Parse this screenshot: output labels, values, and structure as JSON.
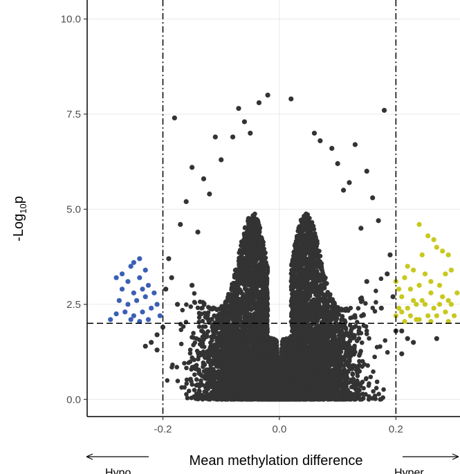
{
  "chart_data": {
    "type": "scatter",
    "title": "",
    "xlabel": "Mean methylation difference",
    "ylabel_main": "-Log",
    "ylabel_sub": "10",
    "ylabel_tail": "p",
    "xlim": [
      -0.33,
      0.31
    ],
    "ylim": [
      -0.45,
      10.5
    ],
    "x_ticks": [
      -0.2,
      0.0,
      0.2
    ],
    "x_tick_labels": [
      "-0.2",
      "0.0",
      "0.2"
    ],
    "y_ticks": [
      0.0,
      2.5,
      5.0,
      7.5,
      10.0
    ],
    "y_tick_labels": [
      "0.0",
      "2.5",
      "5.0",
      "7.5",
      "10.0"
    ],
    "grid": true,
    "vertical_thresholds": [
      -0.2,
      0.2
    ],
    "horizontal_threshold": 2.0,
    "annotations": {
      "left": "Hypo",
      "right": "Hyper"
    },
    "colors": {
      "nonsig": "#333333",
      "hypo": "#3b5fb4",
      "hyper": "#c8c81e"
    },
    "series": [
      {
        "name": "",
        "color": "#c8c81e",
        "points": [
          [
            0.24,
            4.6
          ],
          [
            0.255,
            4.3
          ],
          [
            0.27,
            4.0
          ],
          [
            0.265,
            4.2
          ],
          [
            0.28,
            3.9
          ],
          [
            0.29,
            3.8
          ],
          [
            0.245,
            3.8
          ],
          [
            0.22,
            3.5
          ],
          [
            0.23,
            3.4
          ],
          [
            0.25,
            3.3
          ],
          [
            0.285,
            3.3
          ],
          [
            0.295,
            3.4
          ],
          [
            0.215,
            3.2
          ],
          [
            0.24,
            3.0
          ],
          [
            0.26,
            3.1
          ],
          [
            0.275,
            3.0
          ],
          [
            0.225,
            2.9
          ],
          [
            0.2,
            3.1
          ],
          [
            0.205,
            2.9
          ],
          [
            0.21,
            2.7
          ],
          [
            0.23,
            2.6
          ],
          [
            0.245,
            2.6
          ],
          [
            0.26,
            2.8
          ],
          [
            0.28,
            2.7
          ],
          [
            0.29,
            2.6
          ],
          [
            0.205,
            2.4
          ],
          [
            0.22,
            2.4
          ],
          [
            0.235,
            2.5
          ],
          [
            0.25,
            2.5
          ],
          [
            0.265,
            2.4
          ],
          [
            0.275,
            2.5
          ],
          [
            0.295,
            2.5
          ],
          [
            0.2,
            2.2
          ],
          [
            0.21,
            2.3
          ],
          [
            0.225,
            2.2
          ],
          [
            0.24,
            2.1
          ],
          [
            0.255,
            2.2
          ],
          [
            0.27,
            2.2
          ],
          [
            0.285,
            2.3
          ],
          [
            0.3,
            2.2
          ],
          [
            0.215,
            2.05
          ],
          [
            0.235,
            2.1
          ],
          [
            0.26,
            2.05
          ],
          [
            0.29,
            2.05
          ],
          [
            0.305,
            2.8
          ]
        ]
      },
      {
        "name": "",
        "color": "#3b5fb4",
        "points": [
          [
            -0.24,
            3.7
          ],
          [
            -0.25,
            3.6
          ],
          [
            -0.255,
            3.5
          ],
          [
            -0.27,
            3.3
          ],
          [
            -0.28,
            3.2
          ],
          [
            -0.23,
            3.4
          ],
          [
            -0.24,
            3.2
          ],
          [
            -0.26,
            3.1
          ],
          [
            -0.225,
            3.0
          ],
          [
            -0.235,
            2.9
          ],
          [
            -0.25,
            2.8
          ],
          [
            -0.27,
            2.9
          ],
          [
            -0.215,
            2.8
          ],
          [
            -0.23,
            2.7
          ],
          [
            -0.245,
            2.6
          ],
          [
            -0.26,
            2.5
          ],
          [
            -0.275,
            2.6
          ],
          [
            -0.22,
            2.4
          ],
          [
            -0.235,
            2.3
          ],
          [
            -0.25,
            2.2
          ],
          [
            -0.265,
            2.3
          ],
          [
            -0.28,
            2.25
          ],
          [
            -0.225,
            2.1
          ],
          [
            -0.24,
            2.05
          ],
          [
            -0.255,
            2.1
          ],
          [
            -0.21,
            2.5
          ],
          [
            -0.205,
            2.2
          ],
          [
            -0.29,
            2.1
          ]
        ]
      },
      {
        "name": "",
        "color": "#333333",
        "points": [
          [
            -0.02,
            8.0
          ],
          [
            0.02,
            7.9
          ],
          [
            -0.035,
            7.8
          ],
          [
            -0.07,
            7.65
          ],
          [
            -0.18,
            7.4
          ],
          [
            0.18,
            7.6
          ],
          [
            -0.06,
            7.3
          ],
          [
            -0.05,
            7.0
          ],
          [
            0.06,
            7.0
          ],
          [
            -0.11,
            6.9
          ],
          [
            0.07,
            6.8
          ],
          [
            0.13,
            6.7
          ],
          [
            -0.08,
            6.9
          ],
          [
            0.09,
            6.6
          ],
          [
            -0.1,
            6.3
          ],
          [
            0.1,
            6.2
          ],
          [
            -0.15,
            6.1
          ],
          [
            0.15,
            6.0
          ],
          [
            -0.13,
            5.8
          ],
          [
            0.12,
            5.7
          ],
          [
            -0.16,
            5.2
          ],
          [
            0.16,
            5.3
          ],
          [
            -0.12,
            5.4
          ],
          [
            0.11,
            5.5
          ],
          [
            -0.17,
            4.6
          ],
          [
            0.17,
            4.7
          ],
          [
            -0.14,
            4.4
          ],
          [
            0.14,
            4.5
          ],
          [
            -0.19,
            3.7
          ],
          [
            0.19,
            3.8
          ],
          [
            -0.185,
            3.2
          ],
          [
            0.185,
            3.3
          ],
          [
            -0.195,
            2.9
          ],
          [
            0.195,
            2.7
          ],
          [
            -0.15,
            3.0
          ],
          [
            0.15,
            3.1
          ],
          [
            -0.175,
            2.5
          ],
          [
            0.175,
            2.4
          ],
          [
            -0.2,
            1.9
          ],
          [
            0.2,
            1.8
          ],
          [
            -0.21,
            1.7
          ],
          [
            0.21,
            1.8
          ],
          [
            -0.22,
            1.5
          ],
          [
            0.22,
            1.6
          ],
          [
            0.27,
            1.6
          ],
          [
            -0.23,
            1.4
          ],
          [
            0.23,
            1.5
          ],
          [
            -0.21,
            1.3
          ],
          [
            0.21,
            1.2
          ]
        ]
      }
    ]
  }
}
